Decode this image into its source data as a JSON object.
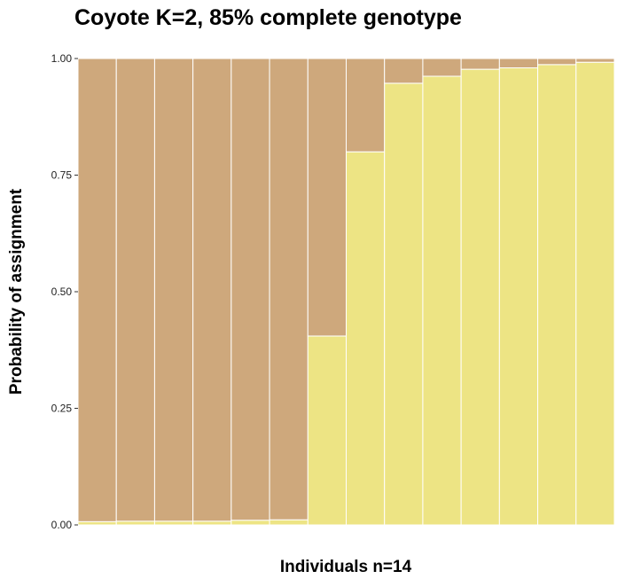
{
  "chart_data": {
    "type": "bar",
    "stacked": true,
    "title": "Coyote K=2, 85% complete genotype",
    "xlabel": "Individuals n=14",
    "ylabel": "Probability of assignment",
    "ylim": [
      0,
      1
    ],
    "yticks": [
      "0.00",
      "0.25",
      "0.50",
      "0.75",
      "1.00"
    ],
    "grid": false,
    "legend": "none",
    "individual_count": 14,
    "series": [
      {
        "color": "#ede484",
        "values": [
          0.007,
          0.008,
          0.008,
          0.008,
          0.01,
          0.011,
          0.405,
          0.8,
          0.947,
          0.962,
          0.977,
          0.98,
          0.987,
          0.992
        ]
      },
      {
        "color": "#cea87c",
        "values": [
          0.993,
          0.992,
          0.992,
          0.992,
          0.99,
          0.989,
          0.595,
          0.2,
          0.053,
          0.038,
          0.023,
          0.02,
          0.013,
          0.008
        ]
      }
    ]
  }
}
